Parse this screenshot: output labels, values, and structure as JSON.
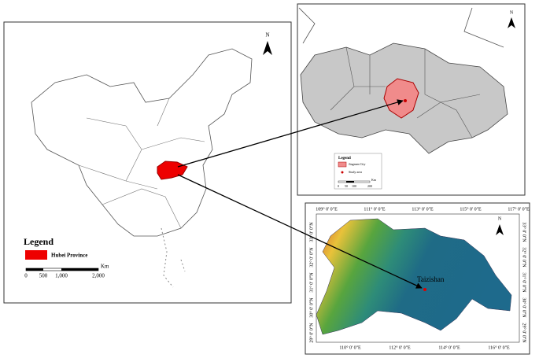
{
  "china_map": {
    "north": "N",
    "legend_title": "Legend",
    "legend_item": "Hubei Province",
    "scale": {
      "labels": [
        "0",
        "500",
        "1,000",
        "2,000"
      ],
      "unit": "Km"
    }
  },
  "hubei_map": {
    "north": "N",
    "legend_title": "Legend",
    "legend_items": [
      "Jingmen City",
      "Study area"
    ],
    "scale": {
      "labels": [
        "0",
        "50",
        "100",
        "200"
      ],
      "unit": "Km"
    }
  },
  "dem_map": {
    "north": "N",
    "site_label": "Taizishan",
    "top_longitudes": [
      "109° 0' 0\"E",
      "111° 0' 0\"E",
      "113° 0' 0\"E",
      "115° 0' 0\"E",
      "117° 0' 0\"E"
    ],
    "bottom_longitudes": [
      "110° 0' 0\"E",
      "112° 0' 0\"E",
      "114° 0' 0\"E",
      "116° 0' 0\"E"
    ],
    "left_latitudes": [
      "33° 0' 0\"N",
      "32° 0' 0\"N",
      "31° 0' 0\"N",
      "30° 0' 0\"N",
      "29° 0' 0\"N"
    ],
    "right_latitudes": [
      "33° 0' 0\"N",
      "32° 0' 0\"N",
      "31° 0' 0\"N",
      "30° 0' 0\"N",
      "29° 0' 0\"N"
    ]
  }
}
